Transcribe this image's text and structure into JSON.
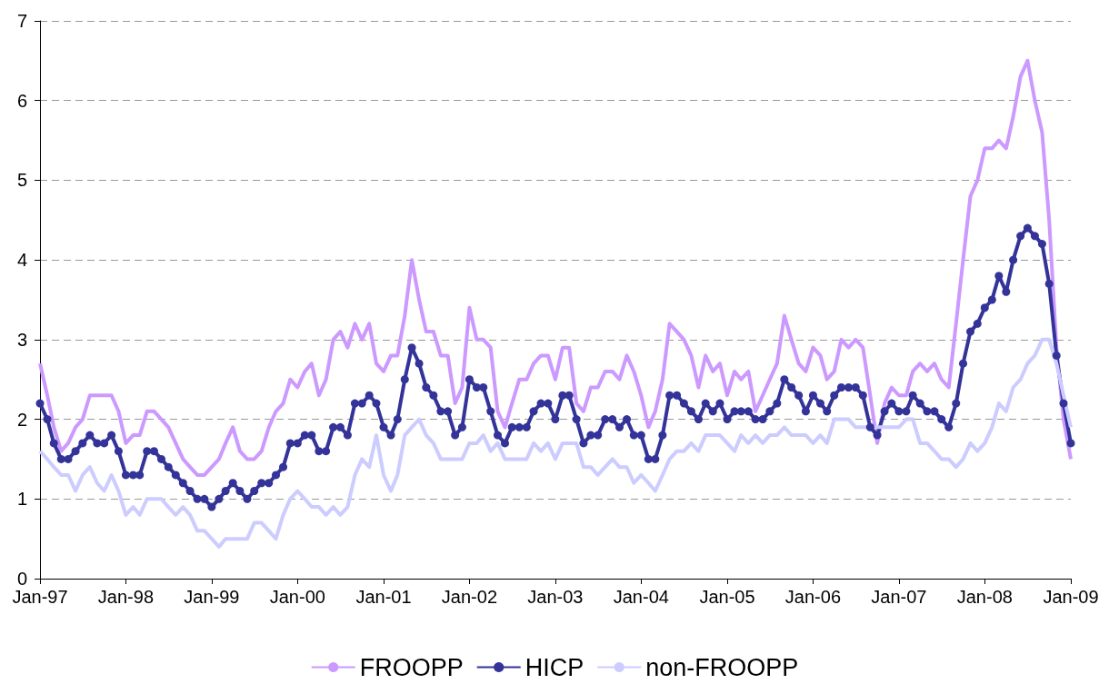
{
  "chart_data": {
    "type": "line",
    "x": [
      "1997-01",
      "1997-02",
      "1997-03",
      "1997-04",
      "1997-05",
      "1997-06",
      "1997-07",
      "1997-08",
      "1997-09",
      "1997-10",
      "1997-11",
      "1997-12",
      "1998-01",
      "1998-02",
      "1998-03",
      "1998-04",
      "1998-05",
      "1998-06",
      "1998-07",
      "1998-08",
      "1998-09",
      "1998-10",
      "1998-11",
      "1998-12",
      "1999-01",
      "1999-02",
      "1999-03",
      "1999-04",
      "1999-05",
      "1999-06",
      "1999-07",
      "1999-08",
      "1999-09",
      "1999-10",
      "1999-11",
      "1999-12",
      "2000-01",
      "2000-02",
      "2000-03",
      "2000-04",
      "2000-05",
      "2000-06",
      "2000-07",
      "2000-08",
      "2000-09",
      "2000-10",
      "2000-11",
      "2000-12",
      "2001-01",
      "2001-02",
      "2001-03",
      "2001-04",
      "2001-05",
      "2001-06",
      "2001-07",
      "2001-08",
      "2001-09",
      "2001-10",
      "2001-11",
      "2001-12",
      "2002-01",
      "2002-02",
      "2002-03",
      "2002-04",
      "2002-05",
      "2002-06",
      "2002-07",
      "2002-08",
      "2002-09",
      "2002-10",
      "2002-11",
      "2002-12",
      "2003-01",
      "2003-02",
      "2003-03",
      "2003-04",
      "2003-05",
      "2003-06",
      "2003-07",
      "2003-08",
      "2003-09",
      "2003-10",
      "2003-11",
      "2003-12",
      "2004-01",
      "2004-02",
      "2004-03",
      "2004-04",
      "2004-05",
      "2004-06",
      "2004-07",
      "2004-08",
      "2004-09",
      "2004-10",
      "2004-11",
      "2004-12",
      "2005-01",
      "2005-02",
      "2005-03",
      "2005-04",
      "2005-05",
      "2005-06",
      "2005-07",
      "2005-08",
      "2005-09",
      "2005-10",
      "2005-11",
      "2005-12",
      "2006-01",
      "2006-02",
      "2006-03",
      "2006-04",
      "2006-05",
      "2006-06",
      "2006-07",
      "2006-08",
      "2006-09",
      "2006-10",
      "2006-11",
      "2006-12",
      "2007-01",
      "2007-02",
      "2007-03",
      "2007-04",
      "2007-05",
      "2007-06",
      "2007-07",
      "2007-08",
      "2007-09",
      "2007-10",
      "2007-11",
      "2007-12",
      "2008-01",
      "2008-02",
      "2008-03",
      "2008-04",
      "2008-05",
      "2008-06",
      "2008-07",
      "2008-08",
      "2008-09",
      "2008-10",
      "2008-11",
      "2008-12",
      "2009-01"
    ],
    "series": [
      {
        "name": "FROOPP",
        "color": "#cc99ff",
        "marker": "none",
        "values": [
          2.7,
          2.3,
          1.9,
          1.6,
          1.7,
          1.9,
          2.0,
          2.3,
          2.3,
          2.3,
          2.3,
          2.1,
          1.7,
          1.8,
          1.8,
          2.1,
          2.1,
          2.0,
          1.9,
          1.7,
          1.5,
          1.4,
          1.3,
          1.3,
          1.4,
          1.5,
          1.7,
          1.9,
          1.6,
          1.5,
          1.5,
          1.6,
          1.9,
          2.1,
          2.2,
          2.5,
          2.4,
          2.6,
          2.7,
          2.3,
          2.5,
          3.0,
          3.1,
          2.9,
          3.2,
          3.0,
          3.2,
          2.7,
          2.6,
          2.8,
          2.8,
          3.3,
          4.0,
          3.5,
          3.1,
          3.1,
          2.8,
          2.8,
          2.2,
          2.4,
          3.4,
          3.0,
          3.0,
          2.9,
          2.1,
          1.9,
          2.2,
          2.5,
          2.5,
          2.7,
          2.8,
          2.8,
          2.5,
          2.9,
          2.9,
          2.2,
          2.1,
          2.4,
          2.4,
          2.6,
          2.6,
          2.5,
          2.8,
          2.6,
          2.3,
          1.9,
          2.1,
          2.5,
          3.2,
          3.1,
          3.0,
          2.8,
          2.4,
          2.8,
          2.6,
          2.7,
          2.3,
          2.6,
          2.5,
          2.6,
          2.1,
          2.3,
          2.5,
          2.7,
          3.3,
          3.0,
          2.7,
          2.6,
          2.9,
          2.8,
          2.5,
          2.6,
          3.0,
          2.9,
          3.0,
          2.9,
          2.3,
          1.7,
          2.2,
          2.4,
          2.3,
          2.3,
          2.6,
          2.7,
          2.6,
          2.7,
          2.5,
          2.4,
          3.2,
          4.0,
          4.8,
          5.0,
          5.4,
          5.4,
          5.5,
          5.4,
          5.8,
          6.3,
          6.5,
          6.0,
          5.6,
          4.5,
          2.9,
          2.0,
          1.5
        ]
      },
      {
        "name": "HICP",
        "color": "#333399",
        "marker": "circle",
        "values": [
          2.2,
          2.0,
          1.7,
          1.5,
          1.5,
          1.6,
          1.7,
          1.8,
          1.7,
          1.7,
          1.8,
          1.6,
          1.3,
          1.3,
          1.3,
          1.6,
          1.6,
          1.5,
          1.4,
          1.3,
          1.2,
          1.1,
          1.0,
          1.0,
          0.9,
          1.0,
          1.1,
          1.2,
          1.1,
          1.0,
          1.1,
          1.2,
          1.2,
          1.3,
          1.4,
          1.7,
          1.7,
          1.8,
          1.8,
          1.6,
          1.6,
          1.9,
          1.9,
          1.8,
          2.2,
          2.2,
          2.3,
          2.2,
          1.9,
          1.8,
          2.0,
          2.5,
          2.9,
          2.7,
          2.4,
          2.3,
          2.1,
          2.1,
          1.8,
          1.9,
          2.5,
          2.4,
          2.4,
          2.1,
          1.8,
          1.7,
          1.9,
          1.9,
          1.9,
          2.1,
          2.2,
          2.2,
          2.0,
          2.3,
          2.3,
          2.0,
          1.7,
          1.8,
          1.8,
          2.0,
          2.0,
          1.9,
          2.0,
          1.8,
          1.8,
          1.5,
          1.5,
          1.8,
          2.3,
          2.3,
          2.2,
          2.1,
          2.0,
          2.2,
          2.1,
          2.2,
          2.0,
          2.1,
          2.1,
          2.1,
          2.0,
          2.0,
          2.1,
          2.2,
          2.5,
          2.4,
          2.3,
          2.1,
          2.3,
          2.2,
          2.1,
          2.3,
          2.4,
          2.4,
          2.4,
          2.3,
          1.9,
          1.8,
          2.1,
          2.2,
          2.1,
          2.1,
          2.3,
          2.2,
          2.1,
          2.1,
          2.0,
          1.9,
          2.2,
          2.7,
          3.1,
          3.2,
          3.4,
          3.5,
          3.8,
          3.6,
          4.0,
          4.3,
          4.4,
          4.3,
          4.2,
          3.7,
          2.8,
          2.2,
          1.7
        ]
      },
      {
        "name": "non-FROOPP",
        "color": "#ccccff",
        "marker": "none",
        "values": [
          1.6,
          1.5,
          1.4,
          1.3,
          1.3,
          1.1,
          1.3,
          1.4,
          1.2,
          1.1,
          1.3,
          1.1,
          0.8,
          0.9,
          0.8,
          1.0,
          1.0,
          1.0,
          0.9,
          0.8,
          0.9,
          0.8,
          0.6,
          0.6,
          0.5,
          0.4,
          0.5,
          0.5,
          0.5,
          0.5,
          0.7,
          0.7,
          0.6,
          0.5,
          0.8,
          1.0,
          1.1,
          1.0,
          0.9,
          0.9,
          0.8,
          0.9,
          0.8,
          0.9,
          1.3,
          1.5,
          1.4,
          1.8,
          1.3,
          1.1,
          1.3,
          1.8,
          1.9,
          2.0,
          1.8,
          1.7,
          1.5,
          1.5,
          1.5,
          1.5,
          1.7,
          1.7,
          1.8,
          1.6,
          1.7,
          1.5,
          1.5,
          1.5,
          1.5,
          1.7,
          1.6,
          1.7,
          1.5,
          1.7,
          1.7,
          1.7,
          1.4,
          1.4,
          1.3,
          1.4,
          1.5,
          1.4,
          1.4,
          1.2,
          1.3,
          1.2,
          1.1,
          1.3,
          1.5,
          1.6,
          1.6,
          1.7,
          1.6,
          1.8,
          1.8,
          1.8,
          1.7,
          1.6,
          1.8,
          1.7,
          1.8,
          1.7,
          1.8,
          1.8,
          1.9,
          1.8,
          1.8,
          1.8,
          1.7,
          1.8,
          1.7,
          2.0,
          2.0,
          2.0,
          1.9,
          1.9,
          1.9,
          1.9,
          1.9,
          1.9,
          1.9,
          2.0,
          2.0,
          1.7,
          1.7,
          1.6,
          1.5,
          1.5,
          1.4,
          1.5,
          1.7,
          1.6,
          1.7,
          1.9,
          2.2,
          2.1,
          2.4,
          2.5,
          2.7,
          2.8,
          3.0,
          3.0,
          2.7,
          2.3,
          1.9
        ]
      }
    ],
    "xlim": [
      "1997-01",
      "2009-01"
    ],
    "xticks": [
      {
        "value": "1997-01",
        "label": "Jan-97"
      },
      {
        "value": "1998-01",
        "label": "Jan-98"
      },
      {
        "value": "1999-01",
        "label": "Jan-99"
      },
      {
        "value": "2000-01",
        "label": "Jan-00"
      },
      {
        "value": "2001-01",
        "label": "Jan-01"
      },
      {
        "value": "2002-01",
        "label": "Jan-02"
      },
      {
        "value": "2003-01",
        "label": "Jan-03"
      },
      {
        "value": "2004-01",
        "label": "Jan-04"
      },
      {
        "value": "2005-01",
        "label": "Jan-05"
      },
      {
        "value": "2006-01",
        "label": "Jan-06"
      },
      {
        "value": "2007-01",
        "label": "Jan-07"
      },
      {
        "value": "2008-01",
        "label": "Jan-08"
      },
      {
        "value": "2009-01",
        "label": "Jan-09"
      }
    ],
    "ylim": [
      0,
      7
    ],
    "yticks": [
      0,
      1,
      2,
      3,
      4,
      5,
      6,
      7
    ],
    "grid": "y",
    "legend": "bottom"
  }
}
